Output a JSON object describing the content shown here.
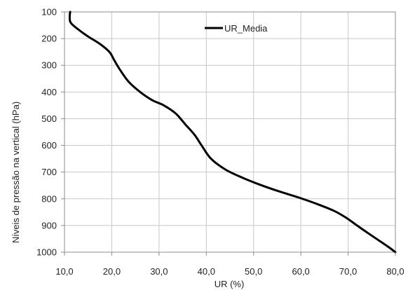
{
  "chart_data": {
    "type": "line",
    "title": "",
    "xlabel": "UR (%)",
    "ylabel": "Níveis de pressão na vertical (hPa)",
    "xlim": [
      10,
      80
    ],
    "ylim": [
      100,
      1000
    ],
    "y_inverted": true,
    "grid": true,
    "legend_position": "top-center",
    "x_ticks": [
      "10,0",
      "20,0",
      "30,0",
      "40,0",
      "50,0",
      "60,0",
      "70,0",
      "80,0"
    ],
    "y_ticks": [
      "100",
      "200",
      "300",
      "400",
      "500",
      "600",
      "700",
      "800",
      "900",
      "1000"
    ],
    "series": [
      {
        "name": "UR_Media",
        "color": "#000000",
        "x": [
          11.2,
          11.1,
          11.3,
          12.5,
          14.8,
          17.5,
          19.5,
          20.5,
          21.5,
          23.5,
          26,
          28.5,
          31,
          33.5,
          35.5,
          37.5,
          39,
          41,
          44,
          47.5,
          51,
          55,
          59.5,
          63.5,
          67,
          69.5,
          71.5,
          73.5,
          76,
          78.5,
          80
        ],
        "y": [
          100,
          120,
          140,
          160,
          190,
          220,
          250,
          280,
          310,
          360,
          400,
          430,
          450,
          480,
          520,
          560,
          600,
          650,
          690,
          720,
          745,
          770,
          795,
          820,
          845,
          870,
          895,
          920,
          950,
          980,
          1000
        ]
      }
    ]
  }
}
